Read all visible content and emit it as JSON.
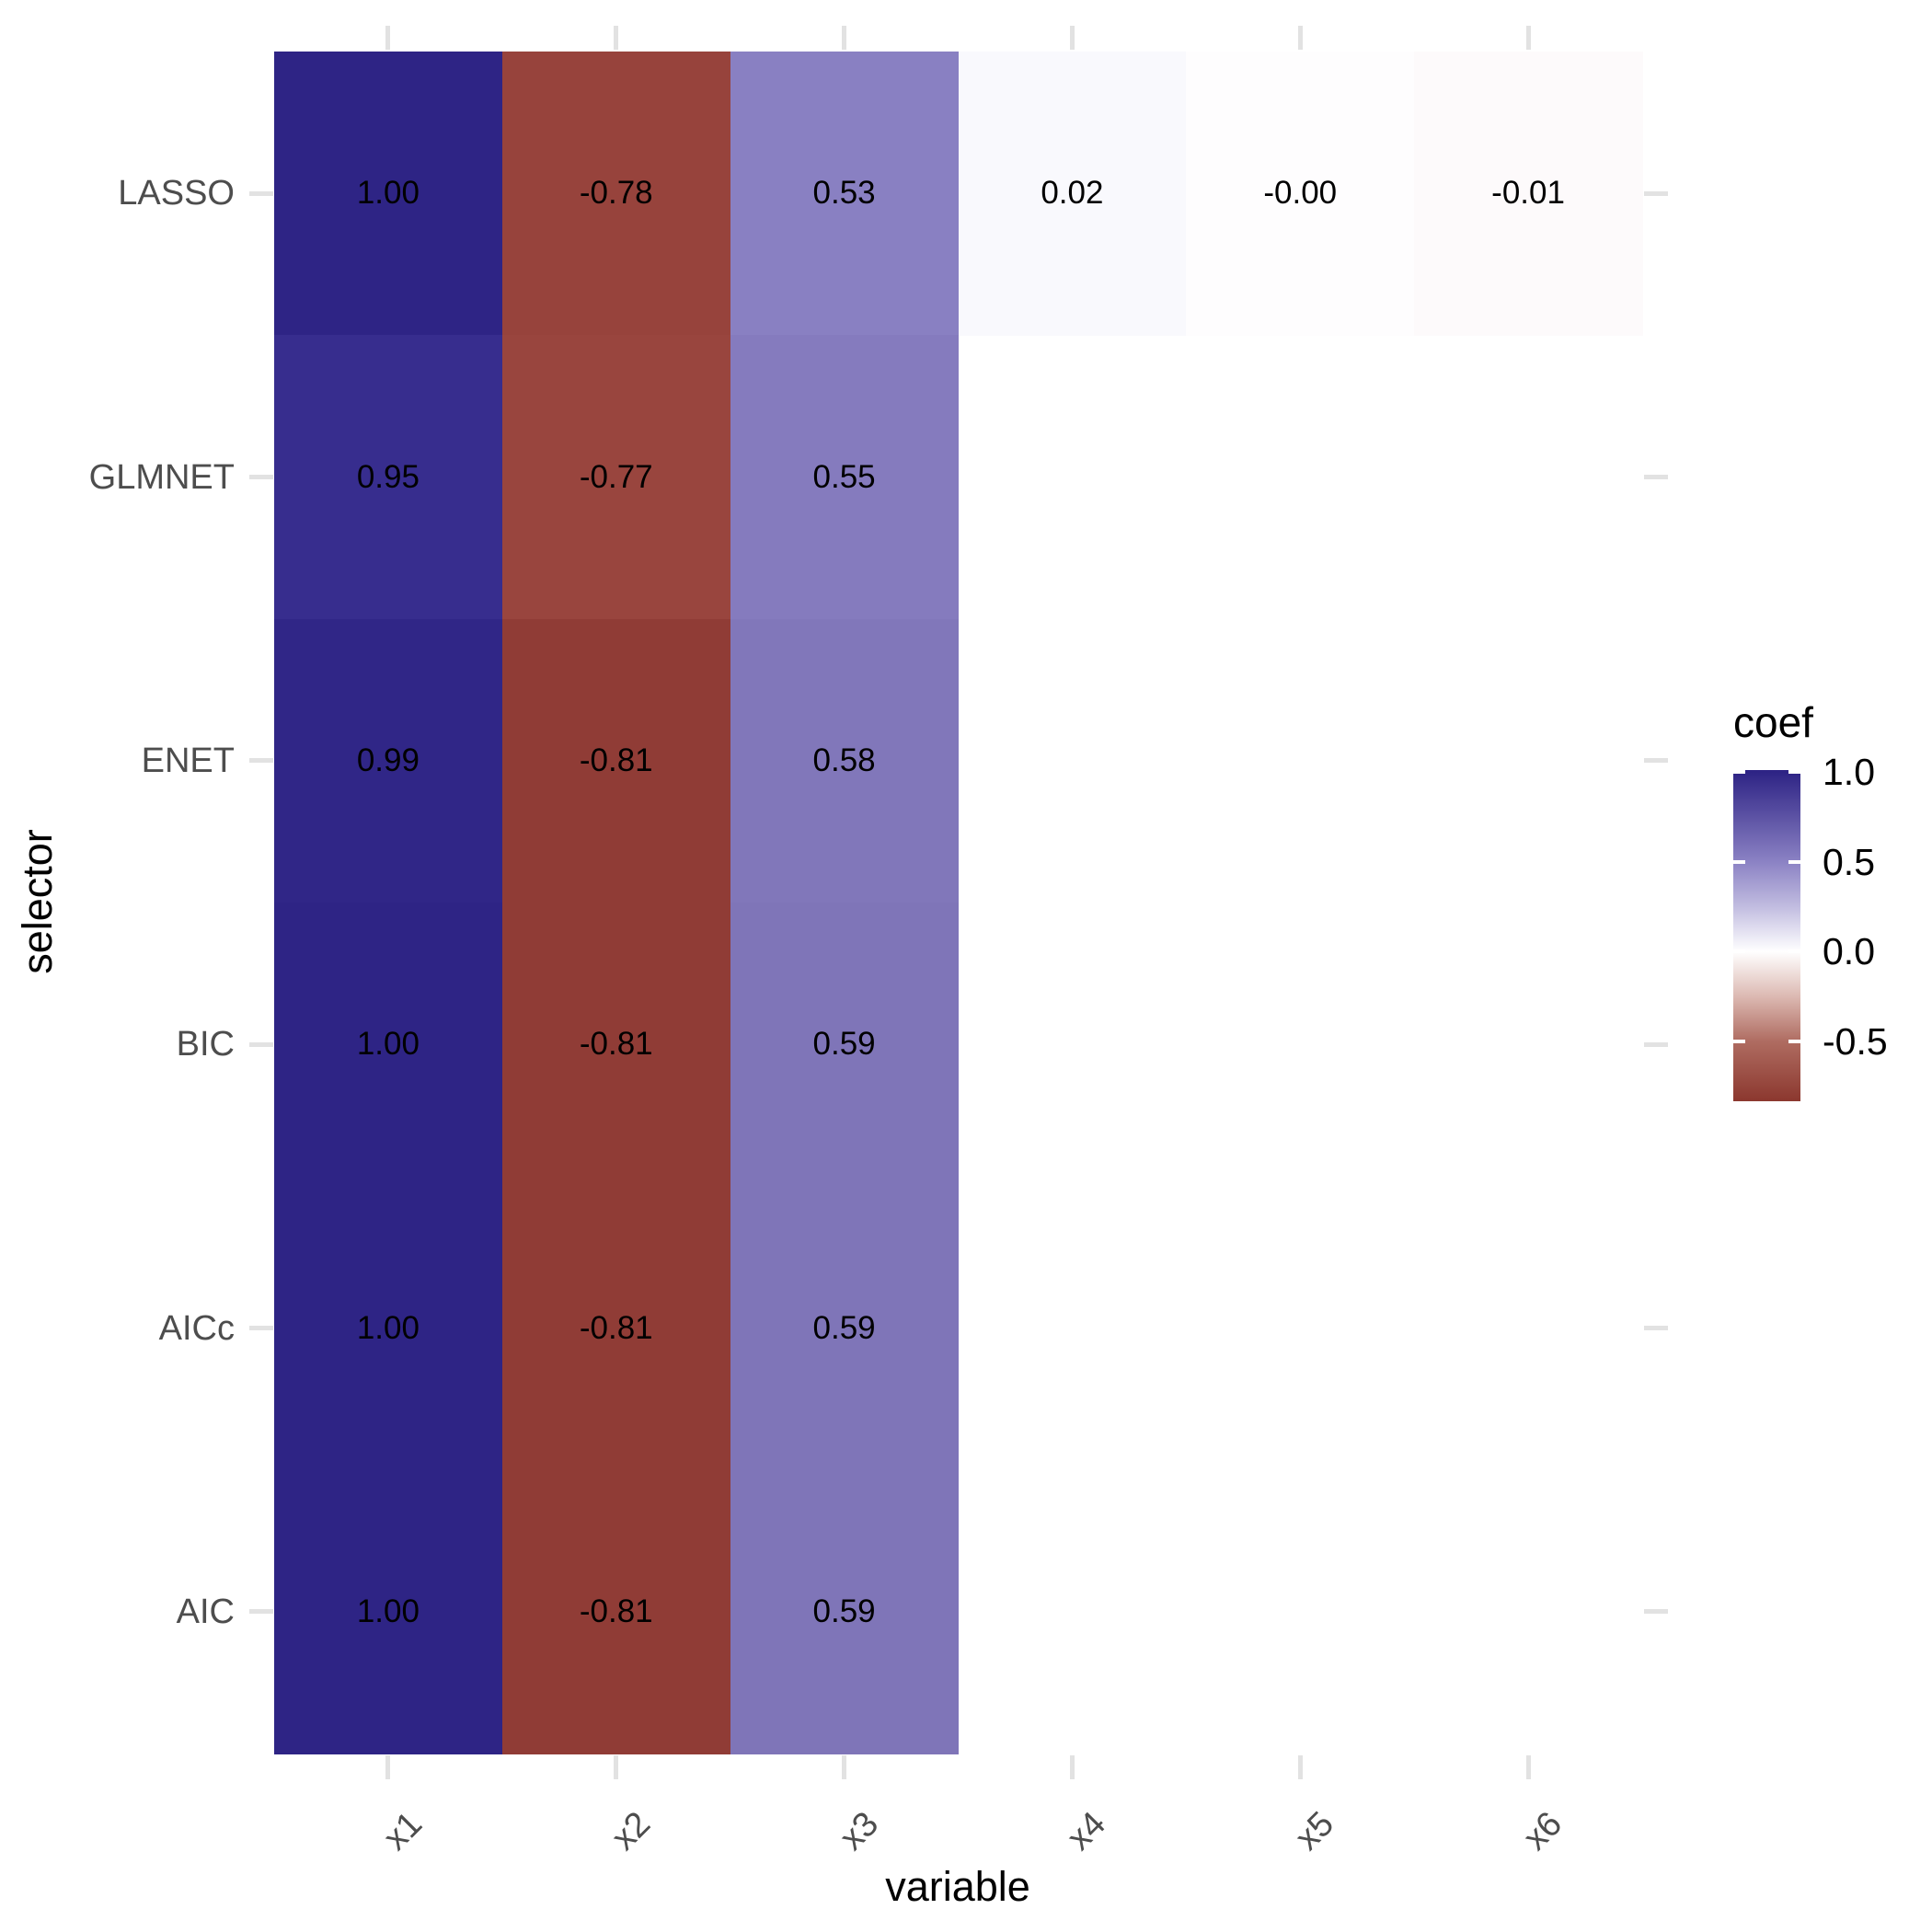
{
  "chart_data": {
    "type": "heatmap",
    "title": "",
    "xlabel": "variable",
    "ylabel": "selector",
    "x_categories": [
      "x1",
      "x2",
      "x3",
      "x4",
      "x5",
      "x6"
    ],
    "y_categories": [
      "LASSO",
      "GLMNET",
      "ENET",
      "BIC",
      "AICc",
      "AIC"
    ],
    "grid": false,
    "legend_position": "right",
    "cells": [
      {
        "row": "LASSO",
        "col": "x1",
        "value": 1.0,
        "label": "1.00",
        "color": "#2E2485"
      },
      {
        "row": "LASSO",
        "col": "x2",
        "value": -0.78,
        "label": "-0.78",
        "color": "#97433C"
      },
      {
        "row": "LASSO",
        "col": "x3",
        "value": 0.53,
        "label": "0.53",
        "color": "#8980C2"
      },
      {
        "row": "LASSO",
        "col": "x4",
        "value": 0.02,
        "label": "0.02",
        "color": "#F9F9FD"
      },
      {
        "row": "LASSO",
        "col": "x5",
        "value": -0.0,
        "label": "-0.00",
        "color": "#FEFDFE"
      },
      {
        "row": "LASSO",
        "col": "x6",
        "value": -0.01,
        "label": "-0.01",
        "color": "#FDFAFB"
      },
      {
        "row": "GLMNET",
        "col": "x1",
        "value": 0.95,
        "label": "0.95",
        "color": "#372D8E"
      },
      {
        "row": "GLMNET",
        "col": "x2",
        "value": -0.77,
        "label": "-0.77",
        "color": "#99453E"
      },
      {
        "row": "GLMNET",
        "col": "x3",
        "value": 0.55,
        "label": "0.55",
        "color": "#857BBE"
      },
      {
        "row": "ENET",
        "col": "x1",
        "value": 0.99,
        "label": "0.99",
        "color": "#302687"
      },
      {
        "row": "ENET",
        "col": "x2",
        "value": -0.81,
        "label": "-0.81",
        "color": "#903C36"
      },
      {
        "row": "ENET",
        "col": "x3",
        "value": 0.58,
        "label": "0.58",
        "color": "#8177BA"
      },
      {
        "row": "BIC",
        "col": "x1",
        "value": 1.0,
        "label": "1.00",
        "color": "#2E2485"
      },
      {
        "row": "BIC",
        "col": "x2",
        "value": -0.81,
        "label": "-0.81",
        "color": "#903C36"
      },
      {
        "row": "BIC",
        "col": "x3",
        "value": 0.59,
        "label": "0.59",
        "color": "#7F75B8"
      },
      {
        "row": "AICc",
        "col": "x1",
        "value": 1.0,
        "label": "1.00",
        "color": "#2E2485"
      },
      {
        "row": "AICc",
        "col": "x2",
        "value": -0.81,
        "label": "-0.81",
        "color": "#903C36"
      },
      {
        "row": "AICc",
        "col": "x3",
        "value": 0.59,
        "label": "0.59",
        "color": "#7F75B8"
      },
      {
        "row": "AIC",
        "col": "x1",
        "value": 1.0,
        "label": "1.00",
        "color": "#2E2485"
      },
      {
        "row": "AIC",
        "col": "x2",
        "value": -0.81,
        "label": "-0.81",
        "color": "#903C36"
      },
      {
        "row": "AIC",
        "col": "x3",
        "value": 0.59,
        "label": "0.59",
        "color": "#7F75B8"
      }
    ],
    "legend": {
      "title": "coef",
      "ticks": [
        {
          "label": "1.0",
          "value": 1.0
        },
        {
          "label": "0.5",
          "value": 0.5
        },
        {
          "label": "0.0",
          "value": 0.0
        },
        {
          "label": "-0.5",
          "value": -0.5
        }
      ],
      "gradient_stops": [
        {
          "value": 1.0,
          "color": "#2E2485"
        },
        {
          "value": 0.75,
          "color": "#5C52A4"
        },
        {
          "value": 0.5,
          "color": "#8B82C4"
        },
        {
          "value": 0.25,
          "color": "#C1BCE0"
        },
        {
          "value": 0.0,
          "color": "#FFFFFF"
        },
        {
          "value": -0.25,
          "color": "#DCB9B2"
        },
        {
          "value": -0.5,
          "color": "#AF6C61"
        },
        {
          "value": -0.83,
          "color": "#8C382F"
        }
      ],
      "domain": [
        -0.83,
        1.02
      ]
    }
  },
  "styles": {
    "background": "#FFFFFF",
    "tick_color": "#E2E2E2",
    "axis_text_color": "#4D4D4D",
    "axis_title_color": "#000000",
    "cell_text_color": "#000000",
    "legend_text_color": "#000000"
  }
}
